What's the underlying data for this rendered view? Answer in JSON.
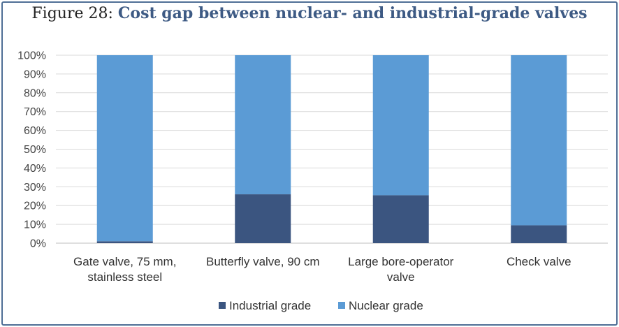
{
  "chart_data": {
    "type": "bar",
    "stacked": true,
    "title_prefix": "Figure 28: ",
    "title": "Cost gap between nuclear- and industrial-grade valves",
    "categories": [
      [
        "Gate valve, 75 mm,",
        "stainless steel"
      ],
      [
        "Butterfly valve, 90 cm"
      ],
      [
        "Large bore-operator",
        "valve"
      ],
      [
        "Check valve"
      ]
    ],
    "series": [
      {
        "name": "Industrial grade",
        "color": "#3b5580",
        "values": [
          1,
          26,
          25.5,
          9.5
        ]
      },
      {
        "name": "Nuclear grade",
        "color": "#5b9bd5",
        "values": [
          99,
          74,
          74.5,
          90.5
        ]
      }
    ],
    "y_ticks": [
      "0%",
      "10%",
      "20%",
      "30%",
      "40%",
      "50%",
      "60%",
      "70%",
      "80%",
      "90%",
      "100%"
    ],
    "ylim": [
      0,
      100
    ],
    "grid": true,
    "legend_position": "bottom"
  }
}
